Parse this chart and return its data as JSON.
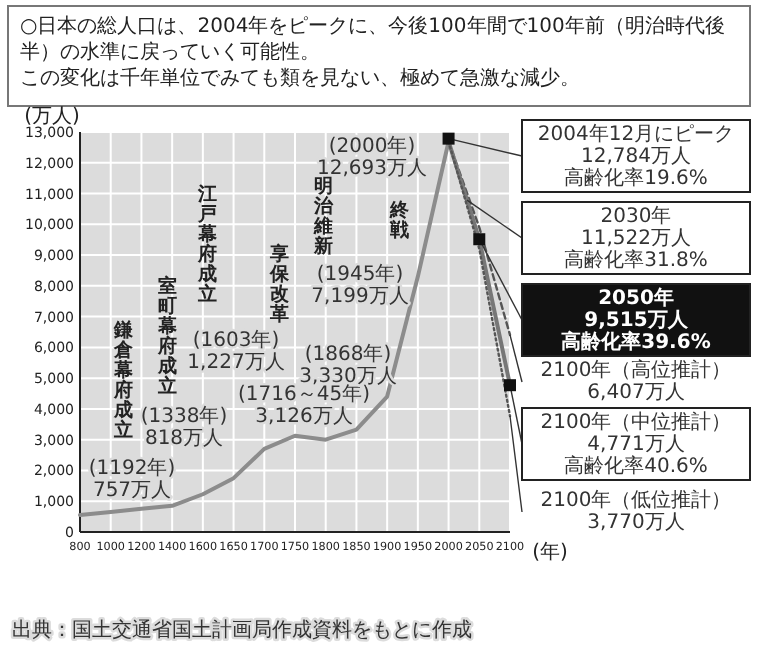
{
  "chart_data": {
    "type": "line",
    "title": "○日本の総人口は、2004年をピークに、今後100年間で100年前（明治時代後半）の水準に戻っていく可能性。",
    "subtitle": "この変化は千年単位でみても類を見ない、極めて急激な減少。",
    "ylabel": "(万人)",
    "xlabel": "(年)",
    "categories": [
      "800",
      "1000",
      "1200",
      "1400",
      "1600",
      "1650",
      "1700",
      "1750",
      "1800",
      "1850",
      "1900",
      "1950",
      "2000",
      "2050",
      "2100"
    ],
    "ylim": [
      0,
      13000
    ],
    "yticks": [
      {
        "value": 0,
        "label": "0"
      },
      {
        "value": 1000,
        "label": "1,000"
      },
      {
        "value": 2000,
        "label": "2,000"
      },
      {
        "value": 3000,
        "label": "3,000"
      },
      {
        "value": 4000,
        "label": "4,000"
      },
      {
        "value": 5000,
        "label": "5,000"
      },
      {
        "value": 6000,
        "label": "6,000"
      },
      {
        "value": 7000,
        "label": "7,000"
      },
      {
        "value": 8000,
        "label": "8,000"
      },
      {
        "value": 9000,
        "label": "9,000"
      },
      {
        "value": 10000,
        "label": "10,000"
      },
      {
        "value": 11000,
        "label": "11,000"
      },
      {
        "value": 12000,
        "label": "12,000"
      },
      {
        "value": 13000,
        "label": "13,000"
      }
    ],
    "grid": true,
    "series": [
      {
        "color": "#8c8c8c",
        "line_style": "solid",
        "values": [
          550,
          650,
          757,
          850,
          1227,
          1750,
          2700,
          3128,
          3000,
          3330,
          4400,
          8300,
          12693,
          null,
          null
        ]
      },
      {
        "color": "#555555",
        "line_style": "dashed",
        "values": [
          null,
          null,
          null,
          null,
          null,
          null,
          null,
          null,
          null,
          null,
          null,
          null,
          12693,
          9900,
          6407
        ]
      },
      {
        "color": "#777777",
        "line_style": "solid",
        "values": [
          null,
          null,
          null,
          null,
          null,
          null,
          null,
          null,
          null,
          null,
          null,
          null,
          12693,
          9515,
          4771
        ]
      },
      {
        "color": "#555555",
        "line_style": "dotted",
        "values": [
          null,
          null,
          null,
          null,
          null,
          null,
          null,
          null,
          null,
          null,
          null,
          null,
          12693,
          9200,
          3770
        ]
      }
    ],
    "annotations": [
      "(1192年)\n757万人",
      "(1338年)\n818万人",
      "(1603年)\n1,227万人",
      "(1716～45年)\n3,126万人",
      "(1868年)\n3,330万人",
      "(1945年)\n7,199万人",
      "(2000年)\n12,693万人",
      {
        "text": "2004年12月にピーク\n12,784万人",
        "x": "2000",
        "y": 12784
      },
      "高齢化率19.6%",
      "2030年\n11,522万人",
      "高齢化率31.8%",
      "2050年\n9,515万人",
      "高齢化率39.6%",
      {
        "text": "2100年（高位推計）\n6,407万人",
        "x": "2100",
        "y": 6407
      },
      {
        "text": "2100年（中位推計）\n4,771万人",
        "x": "2100",
        "y": 4771
      },
      "高齢化率40.6%",
      {
        "text": "2100年（低位推計）\n3,770万人",
        "x": "2100",
        "y": 3770
      },
      "鎌倉幕府成立",
      "室町幕府成立",
      "江戸幕府成立",
      "享保改革",
      "明治維新",
      "終戦",
      "出典：国土交通省国土計画局作成資料をもとに作成"
    ]
  }
}
